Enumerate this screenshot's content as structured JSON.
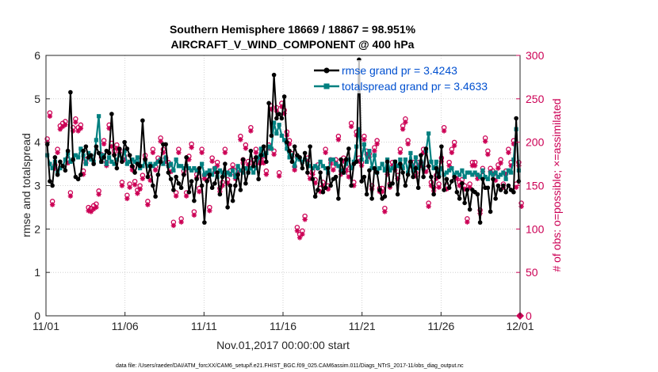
{
  "chart_data": {
    "type": "line",
    "title": "Southern Hemisphere 18669 / 18867 = 98.951%",
    "subtitle": "AIRCRAFT_V_WIND_COMPONENT @ 400 hPa",
    "xlabel": "Nov.01,2017 00:00:00 start",
    "ylabel": "rmse and totalspread",
    "y2label": "# of obs: o=possible; ×=assimilated",
    "footnote": "data file: /Users/raeder/DAI/ATM_forcXX/CAM6_setup/f.e21.FHIST_BGC.f09_025.CAM6assim.011/Diags_NTrS_2017-11/obs_diag_output.nc",
    "xlim": [
      0,
      30
    ],
    "ylim": [
      0,
      6
    ],
    "y2lim": [
      0,
      300
    ],
    "x_tick_values": [
      0,
      5,
      10,
      15,
      20,
      25,
      30
    ],
    "x_tick_labels": [
      "11/01",
      "11/06",
      "11/11",
      "11/16",
      "11/21",
      "11/26",
      "12/01"
    ],
    "y_tick_labels": [
      "0",
      "1",
      "2",
      "3",
      "4",
      "5",
      "6"
    ],
    "y2_tick_labels": [
      "0",
      "50",
      "100",
      "150",
      "200",
      "250",
      "300"
    ],
    "grid": true,
    "legend_position": "top-right",
    "colors": {
      "rmse": "#000000",
      "spread": "#008080",
      "obs": "#cc0055"
    },
    "series": [
      {
        "name": "rmse grand pr = 3.4243",
        "values": [
          3.95,
          3.1,
          3.0,
          3.65,
          3.25,
          3.55,
          3.45,
          3.35,
          3.8,
          5.15,
          3.6,
          3.2,
          3.15,
          3.25,
          3.8,
          3.9,
          3.65,
          3.7,
          3.5,
          3.9,
          3.75,
          3.55,
          3.65,
          3.8,
          3.75,
          4.65,
          3.7,
          3.4,
          3.85,
          3.55,
          4.0,
          3.85,
          3.7,
          3.45,
          3.3,
          3.5,
          3.45,
          4.5,
          3.6,
          3.2,
          3.45,
          3.0,
          2.75,
          3.25,
          3.55,
          3.95,
          3.95,
          3.3,
          3.15,
          2.9,
          3.2,
          3.05,
          2.95,
          3.25,
          3.65,
          2.85,
          3.1,
          2.65,
          3.15,
          3.4,
          3.0,
          2.15,
          3.1,
          3.25,
          2.95,
          3.05,
          3.3,
          2.8,
          3.2,
          3.5,
          2.5,
          3.0,
          2.65,
          3.0,
          3.25,
          2.9,
          3.6,
          3.05,
          3.3,
          3.8,
          3.45,
          3.65,
          3.15,
          3.7,
          3.9,
          3.55,
          4.9,
          4.15,
          5.55,
          4.55,
          4.65,
          4.55,
          5.05,
          4.0,
          3.8,
          3.55,
          3.9,
          3.7,
          3.65,
          3.4,
          3.75,
          3.3,
          3.9,
          3.15,
          2.75,
          2.9,
          3.3,
          2.85,
          2.95,
          3.4,
          3.0,
          3.15,
          3.2,
          2.7,
          3.6,
          3.3,
          3.6,
          3.85,
          3.0,
          3.5,
          3.55,
          5.9,
          3.1,
          3.2,
          2.8,
          3.35,
          2.7,
          3.4,
          3.3,
          2.9,
          2.7,
          2.75,
          3.55,
          3.0,
          3.05,
          3.55,
          2.8,
          3.5,
          3.3,
          3.0,
          3.25,
          3.55,
          3.2,
          3.4,
          2.95,
          3.7,
          3.2,
          3.85,
          3.45,
          3.2,
          2.8,
          3.4,
          3.2,
          3.9,
          2.9,
          3.15,
          2.95,
          3.1,
          3.2,
          2.85,
          2.7,
          3.05,
          2.6,
          2.9,
          2.45,
          2.9,
          2.85,
          2.8,
          2.15,
          3.15,
          2.95,
          2.95,
          2.4,
          3.15,
          2.7,
          3.0,
          2.9,
          3.0,
          2.85,
          3.0,
          2.9,
          2.85,
          4.55,
          3.1
        ]
      },
      {
        "name": "totalspread grand pr = 3.4633",
        "values": [
          3.7,
          3.5,
          3.4,
          3.55,
          3.3,
          3.4,
          3.45,
          3.6,
          3.75,
          3.55,
          3.6,
          3.7,
          3.65,
          3.85,
          3.7,
          3.5,
          3.75,
          3.6,
          3.55,
          4.05,
          4.6,
          3.55,
          3.7,
          3.5,
          3.65,
          3.55,
          3.5,
          3.6,
          3.7,
          3.6,
          3.8,
          3.5,
          3.55,
          3.6,
          3.55,
          3.65,
          3.4,
          3.45,
          3.55,
          3.45,
          3.5,
          3.45,
          3.5,
          3.55,
          3.6,
          3.5,
          3.65,
          3.45,
          3.5,
          3.35,
          3.6,
          3.45,
          3.45,
          3.4,
          3.45,
          3.4,
          3.35,
          3.4,
          3.35,
          3.3,
          3.5,
          3.25,
          3.3,
          3.35,
          3.25,
          3.4,
          3.2,
          3.35,
          3.3,
          3.25,
          3.3,
          3.25,
          3.35,
          3.2,
          3.45,
          3.35,
          3.3,
          3.4,
          3.3,
          3.4,
          3.3,
          3.4,
          3.65,
          3.85,
          3.7,
          3.75,
          3.9,
          3.85,
          4.45,
          4.2,
          4.4,
          4.15,
          4.05,
          3.85,
          3.65,
          3.7,
          3.45,
          3.65,
          3.6,
          3.55,
          3.6,
          3.5,
          3.45,
          3.4,
          3.45,
          3.4,
          3.55,
          3.45,
          3.4,
          3.3,
          3.6,
          3.6,
          3.5,
          3.45,
          3.35,
          3.3,
          3.5,
          3.6,
          3.4,
          3.55,
          3.9,
          4.3,
          3.6,
          3.95,
          3.55,
          3.8,
          3.4,
          3.7,
          3.3,
          3.4,
          3.5,
          3.35,
          3.6,
          3.35,
          3.4,
          3.55,
          3.45,
          3.6,
          3.4,
          3.6,
          3.3,
          3.75,
          3.35,
          3.65,
          3.4,
          3.55,
          3.4,
          3.8,
          4.2,
          3.55,
          3.4,
          3.55,
          3.25,
          3.4,
          3.25,
          3.3,
          3.35,
          3.4,
          3.25,
          3.3,
          3.25,
          3.35,
          3.2,
          3.3,
          3.3,
          3.25,
          3.3,
          3.25,
          3.2,
          3.35,
          3.2,
          3.15,
          3.3,
          3.25,
          3.3,
          3.2,
          3.25,
          3.3,
          3.15,
          3.35,
          3.3,
          3.6,
          4.3,
          3.35
        ]
      },
      {
        "name": "obs possible",
        "values": [
          202,
          232,
          130,
          172,
          190,
          217,
          220,
          222,
          178,
          140,
          215,
          225,
          215,
          218,
          165,
          178,
          123,
          122,
          125,
          127,
          142,
          184,
          200,
          175,
          218,
          197,
          188,
          195,
          190,
          152,
          182,
          137,
          150,
          170,
          153,
          143,
          148,
          160,
          183,
          130,
          158,
          190,
          170,
          180,
          203,
          190,
          180,
          175,
          168,
          106,
          140,
          190,
          110,
          165,
          140,
          182,
          196,
          118,
          161,
          145,
          190,
          160,
          158,
          123,
          180,
          168,
          175,
          145,
          152,
          190,
          155,
          165,
          172,
          160,
          167,
          205,
          178,
          195,
          176,
          215,
          177,
          190,
          178,
          178,
          178,
          165,
          195,
          240,
          188,
          238,
          163,
          243,
          235,
          210,
          200,
          185,
          170,
          100,
          92,
          96,
          113,
          180,
          160,
          165,
          155,
          172,
          145,
          152,
          190,
          148,
          178,
          170,
          178,
          205,
          165,
          180,
          170,
          162,
          220,
          152,
          210,
          180,
          175,
          205,
          188,
          185,
          148,
          192,
          200,
          145,
          145,
          122,
          165,
          150,
          175,
          170,
          160,
          190,
          217,
          225,
          200,
          175,
          175,
          163,
          175,
          175,
          190,
          168,
          128,
          152,
          146,
          160,
          150,
          180,
          215,
          148,
          175,
          190,
          198,
          160,
          152,
          155,
          148,
          110,
          150,
          175,
          175,
          160,
          120,
          168,
          203,
          188,
          168,
          165,
          158,
          172,
          178,
          150,
          165,
          190,
          175,
          200,
          150,
          175,
          128,
          0
        ]
      },
      {
        "name": "obs assimilated",
        "values": [
          200,
          230,
          128,
          170,
          188,
          215,
          218,
          220,
          176,
          138,
          213,
          223,
          213,
          216,
          163,
          176,
          121,
          120,
          123,
          125,
          140,
          182,
          198,
          173,
          216,
          195,
          186,
          193,
          188,
          150,
          180,
          135,
          148,
          168,
          151,
          141,
          146,
          158,
          181,
          128,
          156,
          188,
          168,
          178,
          201,
          188,
          178,
          173,
          166,
          104,
          138,
          188,
          108,
          163,
          138,
          180,
          194,
          116,
          159,
          143,
          188,
          158,
          156,
          121,
          178,
          166,
          173,
          143,
          150,
          188,
          153,
          163,
          170,
          158,
          165,
          203,
          176,
          193,
          174,
          213,
          175,
          188,
          176,
          176,
          176,
          163,
          193,
          238,
          186,
          236,
          161,
          241,
          233,
          208,
          198,
          183,
          168,
          98,
          90,
          94,
          111,
          178,
          158,
          163,
          153,
          170,
          143,
          150,
          188,
          146,
          176,
          168,
          176,
          203,
          163,
          178,
          168,
          160,
          218,
          150,
          208,
          178,
          173,
          203,
          186,
          183,
          146,
          190,
          198,
          143,
          143,
          120,
          163,
          148,
          173,
          168,
          158,
          188,
          215,
          223,
          198,
          173,
          173,
          161,
          173,
          173,
          188,
          166,
          126,
          150,
          144,
          158,
          148,
          178,
          213,
          146,
          173,
          188,
          196,
          158,
          150,
          153,
          146,
          108,
          148,
          173,
          173,
          158,
          118,
          166,
          201,
          186,
          166,
          163,
          156,
          170,
          176,
          148,
          163,
          188,
          173,
          198,
          148,
          173,
          126,
          0
        ]
      }
    ]
  }
}
